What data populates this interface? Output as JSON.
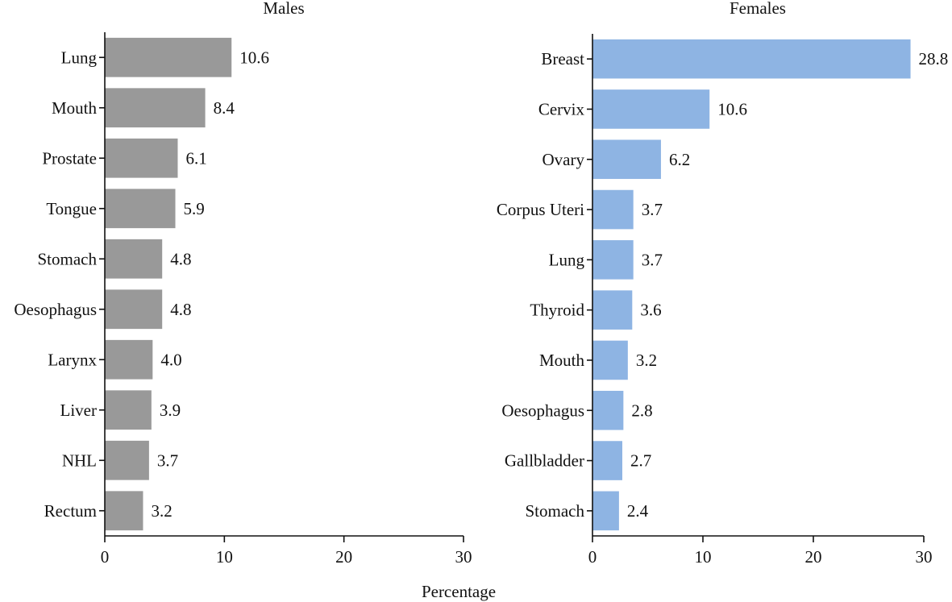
{
  "chart_data": [
    {
      "type": "bar",
      "orientation": "horizontal",
      "title": "Males",
      "categories": [
        "Lung",
        "Mouth",
        "Prostate",
        "Tongue",
        "Stomach",
        "Oesophagus",
        "Larynx",
        "Liver",
        "NHL",
        "Rectum"
      ],
      "values": [
        10.6,
        8.4,
        6.1,
        5.9,
        4.8,
        4.8,
        4.0,
        3.9,
        3.7,
        3.2
      ],
      "value_labels": [
        "10.6",
        "8.4",
        "6.1",
        "5.9",
        "4.8",
        "4.8",
        "4.0",
        "3.9",
        "3.7",
        "3.2"
      ],
      "xlim": [
        0,
        30
      ],
      "xticks": [
        0,
        10,
        20,
        30
      ],
      "xtick_labels": [
        "0",
        "10",
        "20",
        "30"
      ],
      "color": "#999999"
    },
    {
      "type": "bar",
      "orientation": "horizontal",
      "title": "Females",
      "categories": [
        "Breast",
        "Cervix",
        "Ovary",
        "Corpus Uteri",
        "Lung",
        "Thyroid",
        "Mouth",
        "Oesophagus",
        "Gallbladder",
        "Stomach"
      ],
      "values": [
        28.8,
        10.6,
        6.2,
        3.7,
        3.7,
        3.6,
        3.2,
        2.8,
        2.7,
        2.4
      ],
      "value_labels": [
        "28.8",
        "10.6",
        "6.2",
        "3.7",
        "3.7",
        "3.6",
        "3.2",
        "2.8",
        "2.7",
        "2.4"
      ],
      "xlim": [
        0,
        30
      ],
      "xticks": [
        0,
        10,
        20,
        30
      ],
      "xtick_labels": [
        "0",
        "10",
        "20",
        "30"
      ],
      "color": "#8EB4E3"
    }
  ],
  "xlabel": "Percentage"
}
